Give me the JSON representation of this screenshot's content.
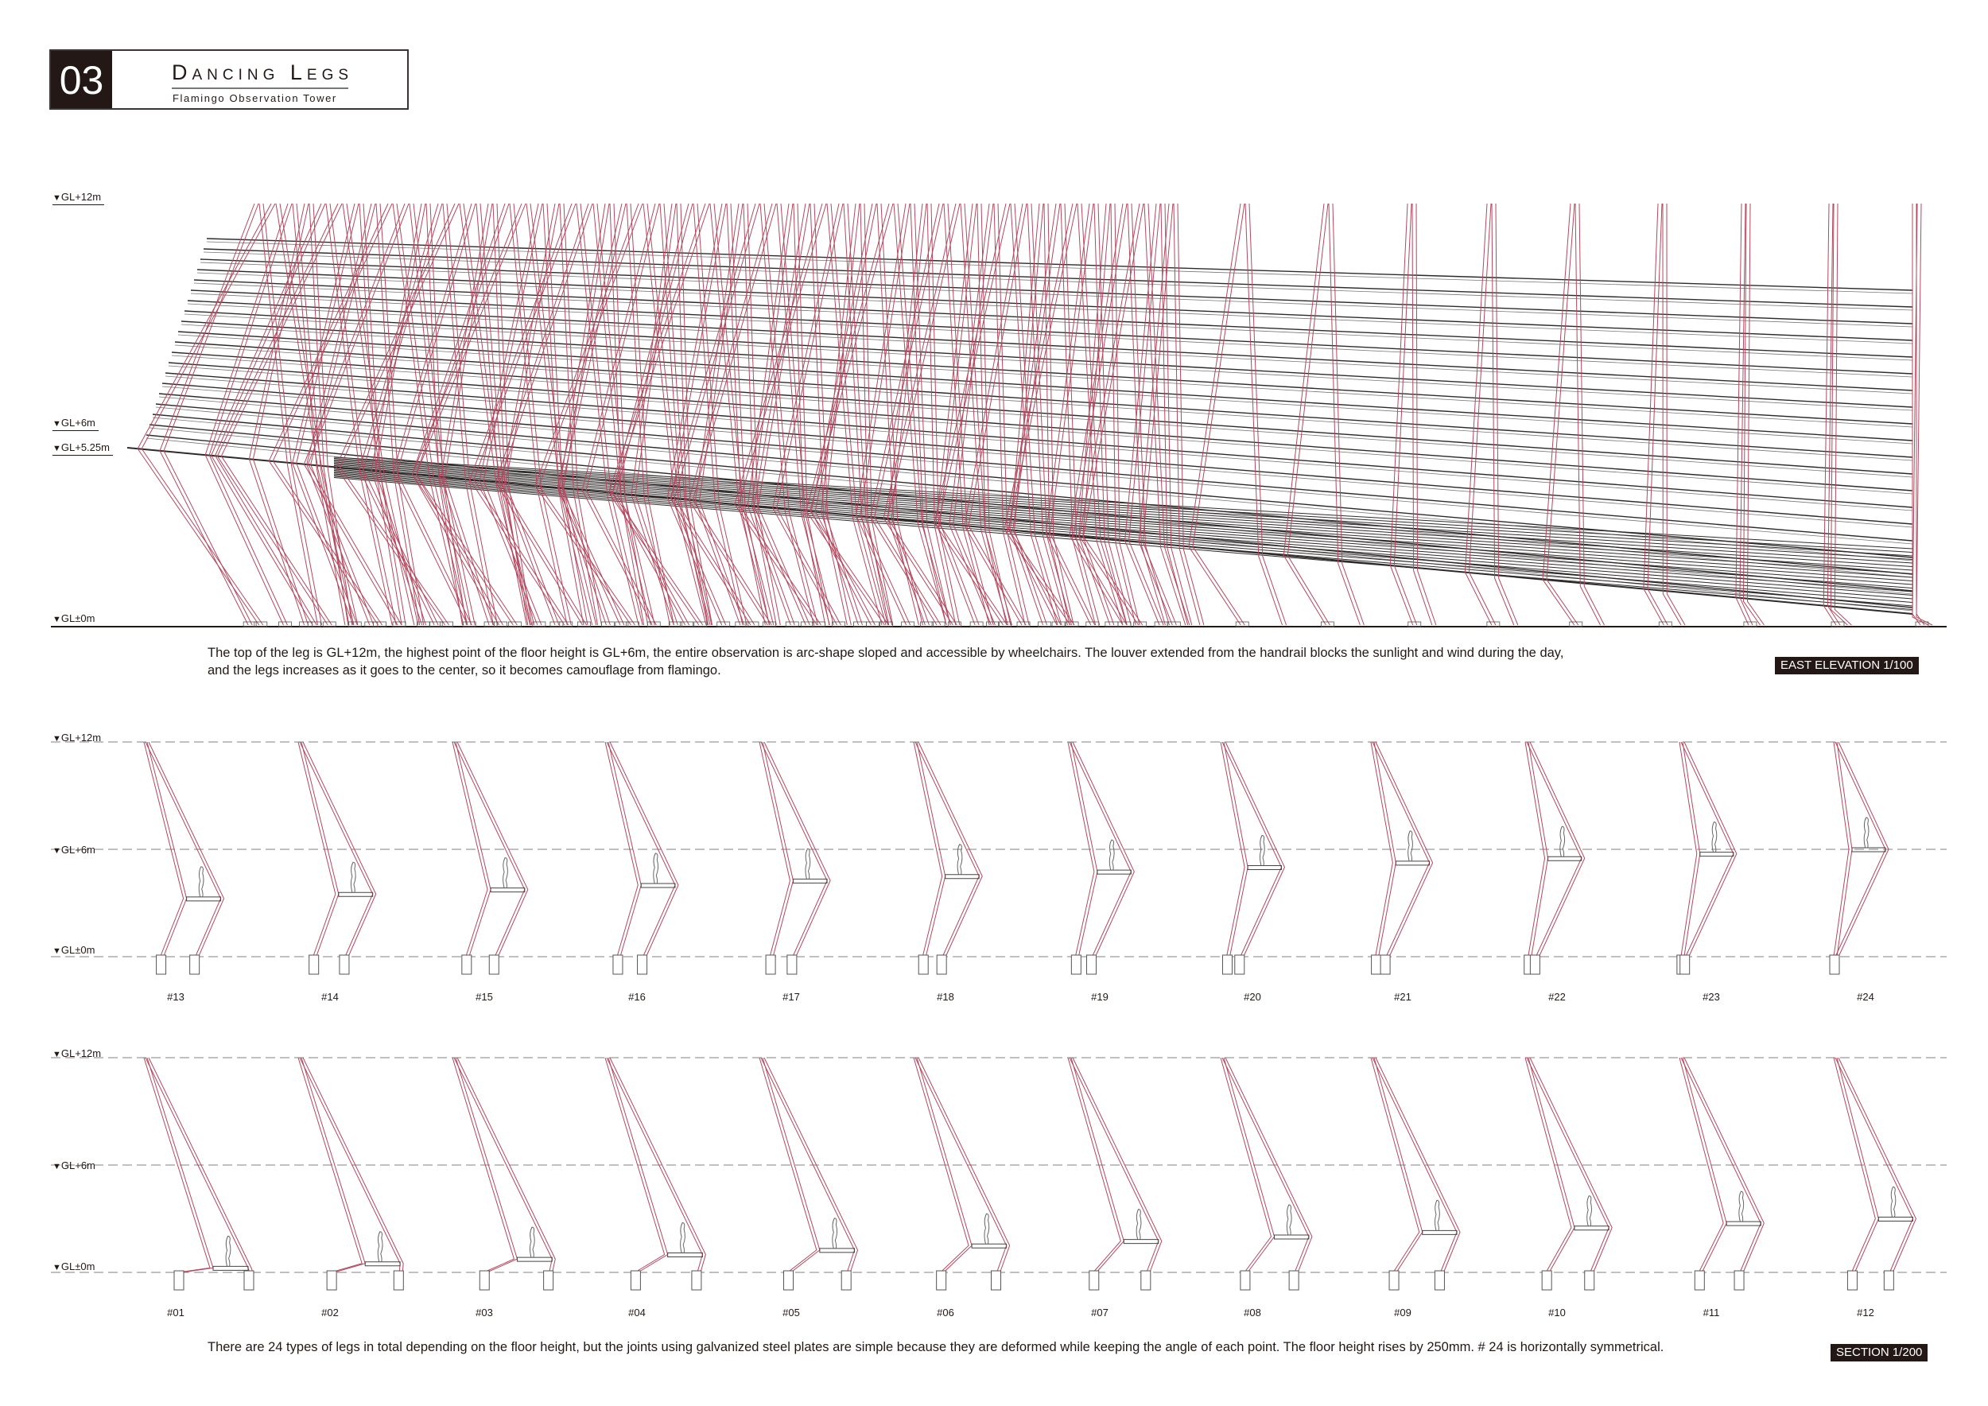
{
  "header": {
    "number": "03",
    "title": "Dancing Legs",
    "subtitle": "Flamingo Observation Tower"
  },
  "elevation": {
    "levels": [
      "GL+12m",
      "GL+6m",
      "GL+5.25m",
      "GL±0m"
    ],
    "description": [
      "The top of the leg is GL+12m, the highest point of the floor height is GL+6m, the entire observation is arc-shape sloped and accessible by wheelchairs. The louver extended from the handrail blocks the sunlight and wind during the day,",
      "and the legs increases as it goes to the center, so it becomes camouflage from flamingo."
    ],
    "scale_label": "EAST ELEVATION 1/100"
  },
  "sections": {
    "levels": [
      "GL+12m",
      "GL+6m",
      "GL±0m"
    ],
    "rows": [
      {
        "items": [
          {
            "id": "#13",
            "floor_m": 3.25
          },
          {
            "id": "#14",
            "floor_m": 3.5
          },
          {
            "id": "#15",
            "floor_m": 3.75
          },
          {
            "id": "#16",
            "floor_m": 4.0
          },
          {
            "id": "#17",
            "floor_m": 4.25
          },
          {
            "id": "#18",
            "floor_m": 4.5
          },
          {
            "id": "#19",
            "floor_m": 4.75
          },
          {
            "id": "#20",
            "floor_m": 5.0
          },
          {
            "id": "#21",
            "floor_m": 5.25
          },
          {
            "id": "#22",
            "floor_m": 5.5
          },
          {
            "id": "#23",
            "floor_m": 5.75
          },
          {
            "id": "#24",
            "floor_m": 6.0
          }
        ]
      },
      {
        "items": [
          {
            "id": "#01",
            "floor_m": 0.25
          },
          {
            "id": "#02",
            "floor_m": 0.5
          },
          {
            "id": "#03",
            "floor_m": 0.75
          },
          {
            "id": "#04",
            "floor_m": 1.0
          },
          {
            "id": "#05",
            "floor_m": 1.25
          },
          {
            "id": "#06",
            "floor_m": 1.5
          },
          {
            "id": "#07",
            "floor_m": 1.75
          },
          {
            "id": "#08",
            "floor_m": 2.0
          },
          {
            "id": "#09",
            "floor_m": 2.25
          },
          {
            "id": "#10",
            "floor_m": 2.5
          },
          {
            "id": "#11",
            "floor_m": 2.75
          },
          {
            "id": "#12",
            "floor_m": 3.0
          }
        ]
      }
    ],
    "description": "There are 24 types of legs in total depending on the floor height, but the joints using galvanized steel plates are simple because they are deformed while keeping the angle of each point. The floor height rises by 250mm. # 24 is horizontally symmetrical.",
    "scale_label": "SECTION 1/200"
  },
  "colors": {
    "leg": "#b4475e",
    "louver": "#2e2a2a",
    "dash": "#9a9a9a",
    "ink": "#231815"
  }
}
